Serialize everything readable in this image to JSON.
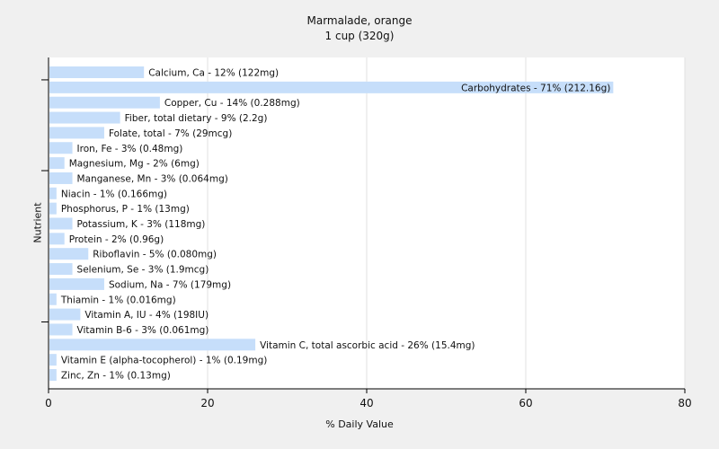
{
  "chart_data": {
    "type": "bar",
    "orientation": "horizontal",
    "title": "Marmalade, orange",
    "subtitle": "1 cup (320g)",
    "xlabel": "% Daily Value",
    "ylabel": "Nutrient",
    "xlim": [
      0,
      80
    ],
    "xticks": [
      0,
      20,
      40,
      60,
      80
    ],
    "grid": true,
    "bar_color": "#c6defa",
    "categories": [
      "Calcium, Ca",
      "Carbohydrates",
      "Copper, Cu",
      "Fiber, total dietary",
      "Folate, total",
      "Iron, Fe",
      "Magnesium, Mg",
      "Manganese, Mn",
      "Niacin",
      "Phosphorus, P",
      "Potassium, K",
      "Protein",
      "Riboflavin",
      "Selenium, Se",
      "Sodium, Na",
      "Thiamin",
      "Vitamin A, IU",
      "Vitamin B-6",
      "Vitamin C, total ascorbic acid",
      "Vitamin E (alpha-tocopherol)",
      "Zinc, Zn"
    ],
    "values": [
      12,
      71,
      14,
      9,
      7,
      3,
      2,
      3,
      1,
      1,
      3,
      2,
      5,
      3,
      7,
      1,
      4,
      3,
      26,
      1,
      1
    ],
    "labels": [
      "Calcium, Ca - 12% (122mg)",
      "Carbohydrates - 71% (212.16g)",
      "Copper, Cu - 14% (0.288mg)",
      "Fiber, total dietary - 9% (2.2g)",
      "Folate, total - 7% (29mcg)",
      "Iron, Fe - 3% (0.48mg)",
      "Magnesium, Mg - 2% (6mg)",
      "Manganese, Mn - 3% (0.064mg)",
      "Niacin - 1% (0.166mg)",
      "Phosphorus, P - 1% (13mg)",
      "Potassium, K - 3% (118mg)",
      "Protein - 2% (0.96g)",
      "Riboflavin - 5% (0.080mg)",
      "Selenium, Se - 3% (1.9mcg)",
      "Sodium, Na - 7% (179mg)",
      "Thiamin - 1% (0.016mg)",
      "Vitamin A, IU - 4% (198IU)",
      "Vitamin B-6 - 3% (0.061mg)",
      "Vitamin C, total ascorbic acid - 26% (15.4mg)",
      "Vitamin E (alpha-tocopherol) - 1% (0.19mg)",
      "Zinc, Zn - 1% (0.13mg)"
    ]
  }
}
